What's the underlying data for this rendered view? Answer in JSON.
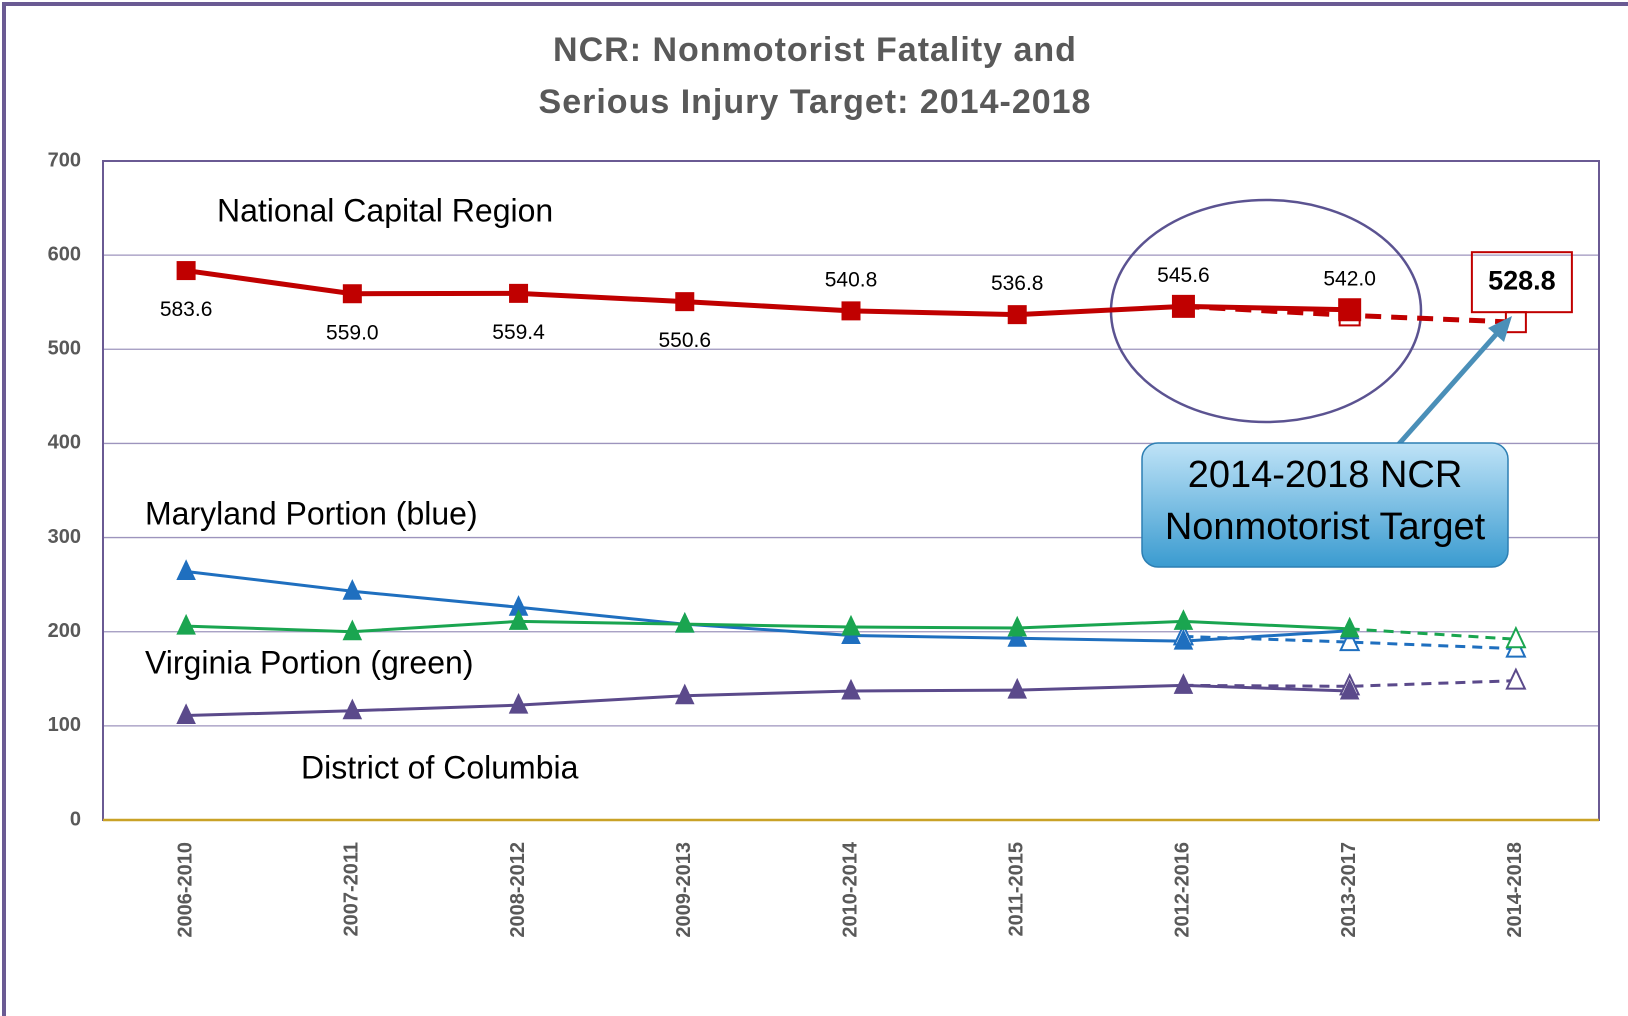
{
  "chart_data": {
    "type": "line",
    "title": [
      "NCR: Nonmotorist Fatality and",
      "Serious Injury Target: 2014-2018"
    ],
    "categories": [
      "2006-2010",
      "2007-2011",
      "2008-2012",
      "2009-2013",
      "2010-2014",
      "2011-2015",
      "2012-2016",
      "2013-2017",
      "2014-2018"
    ],
    "ylim": [
      0,
      700
    ],
    "yticks": [
      0,
      100,
      200,
      300,
      400,
      500,
      600,
      700
    ],
    "grid": true,
    "series": [
      {
        "name": "National Capital Region",
        "color": "#c00000",
        "marker": "square",
        "values": [
          583.6,
          559.0,
          559.4,
          550.6,
          540.8,
          536.8,
          545.6,
          542.0,
          null
        ],
        "value_labels": [
          "583.6",
          "559.0",
          "559.4",
          "550.6",
          "540.8",
          "536.8",
          "545.6",
          "542.0",
          null
        ],
        "trend": [
          null,
          null,
          null,
          null,
          null,
          null,
          545.6,
          536,
          528.8
        ],
        "trend_labels": [
          null,
          null,
          null,
          null,
          null,
          null,
          null,
          null,
          "528.8"
        ]
      },
      {
        "name": "Maryland Portion (blue)",
        "color": "#1f6fbf",
        "marker": "triangle",
        "values": [
          264,
          243,
          226,
          208,
          196,
          193,
          190,
          201,
          null
        ],
        "trend": [
          null,
          null,
          null,
          null,
          null,
          null,
          195,
          189,
          182
        ]
      },
      {
        "name": "Virginia Portion (green)",
        "color": "#1aa550",
        "marker": "triangle",
        "values": [
          206,
          200,
          211,
          208,
          205,
          204,
          211,
          203,
          null
        ],
        "trend": [
          null,
          null,
          null,
          null,
          null,
          null,
          null,
          203,
          192
        ]
      },
      {
        "name": "District of Columbia",
        "color": "#5b4a8b",
        "marker": "triangle",
        "values": [
          111,
          116,
          122,
          132,
          137,
          138,
          143,
          137,
          null
        ],
        "trend": [
          null,
          null,
          null,
          null,
          null,
          null,
          143,
          142,
          148
        ]
      }
    ],
    "callout": [
      "2014-2018 NCR",
      "Nonmotorist Target"
    ]
  }
}
